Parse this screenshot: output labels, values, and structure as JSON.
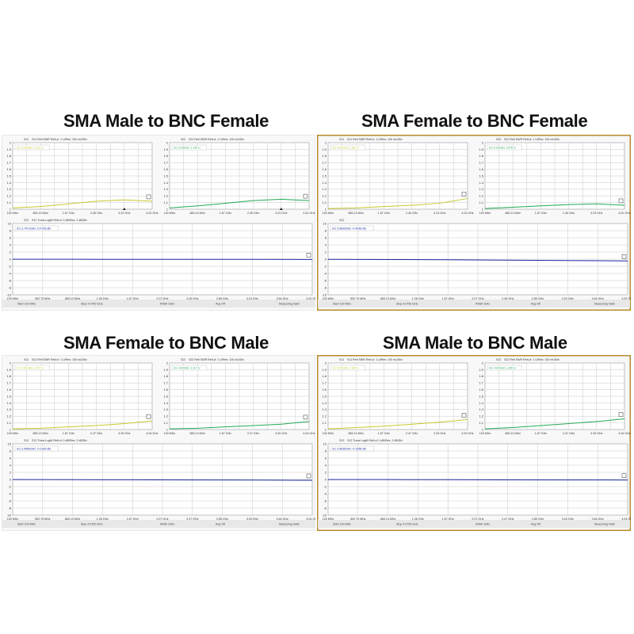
{
  "colors": {
    "s11": "#c8c830",
    "s22": "#22aa55",
    "s12": "#1a2aa0",
    "frame": "#b88a2a",
    "grid": "#c8c8c8"
  },
  "quadrants": [
    {
      "title": "SMA Male to BNC Female",
      "frame_color": "#ffffff",
      "chart_data": {
        "type": "line",
        "s11": {
          "header": "S11 Refl SWR RefLvl: 1 U/Res: 100 mU/Div",
          "marker": "m1 3.23GHz 1.141 U",
          "yticks": [
            "2",
            "1.9",
            "1.8",
            "1.7",
            "1.6",
            "1.5",
            "1.4",
            "1.3",
            "1.2",
            "1.1",
            "1"
          ],
          "ylim": [
            1,
            2
          ],
          "xticks": [
            "100 MHz",
            "883.13 MHz",
            "1.67 GHz",
            "2.45 GHz",
            "3.23 GHz",
            "4.02 GHz"
          ],
          "x": [
            0,
            0.2,
            0.4,
            0.6,
            0.8,
            1.0
          ],
          "y": [
            1.02,
            1.04,
            1.08,
            1.12,
            1.14,
            1.12
          ]
        },
        "s22": {
          "header": "S22 Refl SWR RefLvl: 1 U/Res: 100 mU/Div",
          "marker": "m1 3.23GHz 1.143 U",
          "yticks": [
            "2",
            "1.9",
            "1.8",
            "1.7",
            "1.6",
            "1.5",
            "1.4",
            "1.3",
            "1.2",
            "1.1",
            "1"
          ],
          "ylim": [
            1,
            2
          ],
          "xticks": [
            "100 MHz",
            "883.13 MHz",
            "1.67 GHz",
            "2.45 GHz",
            "3.23 GHz",
            "4.02 GHz"
          ],
          "x": [
            0,
            0.2,
            0.4,
            0.6,
            0.8,
            1.0
          ],
          "y": [
            1.02,
            1.05,
            1.09,
            1.13,
            1.15,
            1.13
          ]
        },
        "s12": {
          "header": "S12 Trans LogM RefLvl: 0 dB/Res: 2 dB/Div",
          "marker": "m1 3.7471GHz -0.0736 dB",
          "yticks": [
            "10",
            "8",
            "6",
            "4",
            "2",
            "0",
            "-2",
            "-4",
            "-6",
            "-8",
            "-10"
          ],
          "ylim": [
            -10,
            10
          ],
          "xticks": [
            "100 MHz",
            "502.75 MHz",
            "883.13 MHz",
            "1.28 GHz",
            "1.67 GHz",
            "2.07 GHz",
            "2.45 GHz",
            "2.85 GHz",
            "3.23 GHz",
            "3.64 GHz",
            "4.02 GHz"
          ],
          "x": [
            0,
            0.2,
            0.4,
            0.6,
            0.8,
            1.0
          ],
          "y": [
            -0.02,
            -0.04,
            -0.05,
            -0.06,
            -0.07,
            -0.08
          ]
        },
        "footer": {
          "start": "Start 100 MHz",
          "stop": "Stop 4.0750 GHz",
          "ifbw": "IFBW 1kHz",
          "avg": "Avg Off",
          "status": "Measuring Valid"
        }
      }
    },
    {
      "title": "SMA Female to BNC Female",
      "frame_color": "#b88a2a",
      "chart_data": {
        "type": "line",
        "s11": {
          "header": "S11 Refl SWR RefLvl: 1 U/Res: 100 mU/Div",
          "marker": "m1 4.02GHz 1.161 U",
          "yticks": [
            "2",
            "1.9",
            "1.8",
            "1.7",
            "1.6",
            "1.5",
            "1.4",
            "1.3",
            "1.2",
            "1.1",
            "1"
          ],
          "ylim": [
            1,
            2
          ],
          "xticks": [
            "100 MHz",
            "883.13 MHz",
            "1.67 GHz",
            "2.45 GHz",
            "3.23 GHz",
            "4.02 GHz"
          ],
          "x": [
            0,
            0.2,
            0.4,
            0.6,
            0.8,
            1.0
          ],
          "y": [
            1.01,
            1.02,
            1.04,
            1.06,
            1.09,
            1.16
          ]
        },
        "s22": {
          "header": "S22 Refl SWR RefLvl: 1 U/Res: 100 mU/Div",
          "marker": "m1 3.23GHz 1.076 U",
          "yticks": [
            "2",
            "1.9",
            "1.8",
            "1.7",
            "1.6",
            "1.5",
            "1.4",
            "1.3",
            "1.2",
            "1.1",
            "1"
          ],
          "ylim": [
            1,
            2
          ],
          "xticks": [
            "100 MHz",
            "883.13 MHz",
            "1.67 GHz",
            "2.45 GHz",
            "3.23 GHz",
            "4.02 GHz"
          ],
          "x": [
            0,
            0.2,
            0.4,
            0.6,
            0.8,
            1.0
          ],
          "y": [
            1.01,
            1.03,
            1.05,
            1.07,
            1.08,
            1.06
          ]
        },
        "s12": {
          "header": "",
          "marker": "m1 3.9833GHz -0.4936 dB",
          "yticks": [
            "10",
            "8",
            "6",
            "4",
            "2",
            "0",
            "-2",
            "-4",
            "-6",
            "-8",
            "-10"
          ],
          "ylim": [
            -10,
            10
          ],
          "xticks": [
            "100 MHz",
            "502.75 MHz",
            "883.13 MHz",
            "1.28 GHz",
            "1.67 GHz",
            "2.07 GHz",
            "2.45 GHz",
            "2.85 GHz",
            "3.23 GHz",
            "3.64 GHz",
            "4.02 GHz"
          ],
          "x": [
            0,
            0.2,
            0.4,
            0.6,
            0.8,
            1.0
          ],
          "y": [
            -0.05,
            -0.1,
            -0.18,
            -0.28,
            -0.38,
            -0.49
          ]
        },
        "footer": {
          "start": "Start 100 MHz",
          "stop": "Stop 4.0750 GHz",
          "ifbw": "IFBW 1kHz",
          "avg": "Avg Off",
          "status": "Measuring Valid"
        }
      }
    },
    {
      "title": "SMA Female to BNC Male",
      "frame_color": "#ffffff",
      "chart_data": {
        "type": "line",
        "s11": {
          "header": "S11 Refl SWR RefLvl: 1 U/Res: 100 mU/Div",
          "marker": "m1 4.02GHz 1.137 U",
          "yticks": [
            "2",
            "1.9",
            "1.8",
            "1.7",
            "1.6",
            "1.5",
            "1.4",
            "1.3",
            "1.2",
            "1.1",
            "1"
          ],
          "ylim": [
            1,
            2
          ],
          "xticks": [
            "100 MHz",
            "883.13 MHz",
            "1.67 GHz",
            "2.47 GHz",
            "3.25 GHz",
            "4.04 GHz"
          ],
          "x": [
            0,
            0.2,
            0.4,
            0.6,
            0.8,
            1.0
          ],
          "y": [
            1.01,
            1.02,
            1.04,
            1.06,
            1.09,
            1.13
          ]
        },
        "s22": {
          "header": "S22 Refl SWR RefLvl: 1 U/Res: 100 mU/Div",
          "marker": "m1 4.02GHz 1.117 U",
          "yticks": [
            "2",
            "1.9",
            "1.8",
            "1.7",
            "1.6",
            "1.5",
            "1.4",
            "1.3",
            "1.2",
            "1.1",
            "1"
          ],
          "ylim": [
            1,
            2
          ],
          "xticks": [
            "100 MHz",
            "883.13 MHz",
            "1.67 GHz",
            "2.47 GHz",
            "3.25 GHz",
            "4.04 GHz"
          ],
          "x": [
            0,
            0.2,
            0.4,
            0.6,
            0.8,
            1.0
          ],
          "y": [
            1.01,
            1.02,
            1.04,
            1.06,
            1.08,
            1.12
          ]
        },
        "s12": {
          "header": "S12 Trans LogM RefLvl: 0 dB/Res: 2 dB/Div",
          "marker": "m1 3.9465GHz -0.2189 dB",
          "yticks": [
            "10",
            "8",
            "6",
            "4",
            "2",
            "0",
            "-2",
            "-4",
            "-6",
            "-8",
            "-10"
          ],
          "ylim": [
            -10,
            10
          ],
          "xticks": [
            "100 MHz",
            "502.75 MHz",
            "883.13 MHz",
            "1.28 GHz",
            "1.67 GHz",
            "2.07 GHz",
            "2.47 GHz",
            "2.85 GHz",
            "3.25 GHz",
            "3.64 GHz",
            "4.04 GHz"
          ],
          "x": [
            0,
            0.2,
            0.4,
            0.6,
            0.8,
            1.0
          ],
          "y": [
            -0.02,
            -0.05,
            -0.09,
            -0.13,
            -0.17,
            -0.22
          ]
        },
        "footer": {
          "start": "Start 100 MHz",
          "stop": "Stop 4.0750 GHz",
          "ifbw": "IFBW 1kHz",
          "avg": "Avg Off",
          "status": "Measuring Valid"
        }
      }
    },
    {
      "title": "SMA Male to BNC Male",
      "frame_color": "#b88a2a",
      "chart_data": {
        "type": "line",
        "s11": {
          "header": "S11 Refl SWR RefLvl: 1 U/Res: 100 mU/Div",
          "marker": "m1 4.02GHz 1.149 U",
          "yticks": [
            "2",
            "1.9",
            "1.8",
            "1.7",
            "1.6",
            "1.5",
            "1.4",
            "1.3",
            "1.2",
            "1.1",
            "1"
          ],
          "ylim": [
            1,
            2
          ],
          "xticks": [
            "100 MHz",
            "883.13 MHz",
            "1.67 GHz",
            "2.47 GHz",
            "3.25 GHz",
            "4.04 GHz"
          ],
          "x": [
            0,
            0.2,
            0.4,
            0.6,
            0.8,
            1.0
          ],
          "y": [
            1.01,
            1.03,
            1.05,
            1.08,
            1.11,
            1.15
          ]
        },
        "s22": {
          "header": "S22 Refl SWR RefLvl: 1 U/Res: 100 mU/Div",
          "marker": "m1 4.02GHz 1.165 U",
          "yticks": [
            "2",
            "1.9",
            "1.8",
            "1.7",
            "1.6",
            "1.5",
            "1.4",
            "1.3",
            "1.2",
            "1.1",
            "1"
          ],
          "ylim": [
            1,
            2
          ],
          "xticks": [
            "100 MHz",
            "883.13 MHz",
            "1.67 GHz",
            "2.47 GHz",
            "3.25 GHz",
            "4.04 GHz"
          ],
          "x": [
            0,
            0.2,
            0.4,
            0.6,
            0.8,
            1.0
          ],
          "y": [
            1.01,
            1.03,
            1.06,
            1.09,
            1.12,
            1.16
          ]
        },
        "s12": {
          "header": "S12 Trans LogM RefLvl: 0 dB/Res: 2 dB/Div",
          "marker": "m1 3.9630GHz -0.1558 dB",
          "yticks": [
            "10",
            "8",
            "6",
            "4",
            "2",
            "0",
            "-2",
            "-4",
            "-6",
            "-8",
            "-10"
          ],
          "ylim": [
            -10,
            10
          ],
          "xticks": [
            "100 MHz",
            "502.75 MHz",
            "883.13 MHz",
            "1.28 GHz",
            "1.67 GHz",
            "2.07 GHz",
            "2.47 GHz",
            "2.85 GHz",
            "3.25 GHz",
            "3.64 GHz",
            "4.04 GHz"
          ],
          "x": [
            0,
            0.2,
            0.4,
            0.6,
            0.8,
            1.0
          ],
          "y": [
            -0.02,
            -0.04,
            -0.07,
            -0.1,
            -0.13,
            -0.16
          ]
        },
        "footer": {
          "start": "Start 100 MHz",
          "stop": "Stop 4.0750 GHz",
          "ifbw": "IFBW 1kHz",
          "avg": "Avg Off",
          "status": "Measuring Valid"
        }
      }
    }
  ]
}
